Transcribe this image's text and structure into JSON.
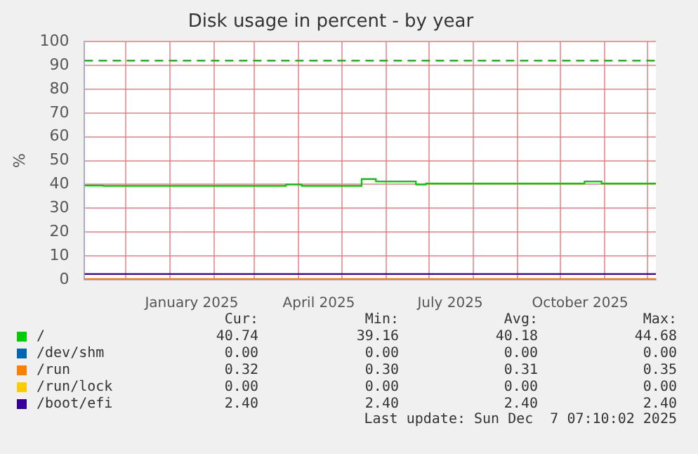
{
  "chart_data": {
    "type": "line",
    "title": "Disk usage in percent - by year",
    "ylabel": "%",
    "xlim": [
      "2024-11-02",
      "2025-12-07"
    ],
    "xticks": [
      {
        "value": "2024-12-01",
        "label": null
      },
      {
        "value": "2025-01-01",
        "label": null
      },
      {
        "value": "2025-01-16",
        "label": "January 2025"
      },
      {
        "value": "2025-02-01",
        "label": null
      },
      {
        "value": "2025-03-01",
        "label": null
      },
      {
        "value": "2025-04-01",
        "label": null
      },
      {
        "value": "2025-04-15",
        "label": "April 2025"
      },
      {
        "value": "2025-05-01",
        "label": null
      },
      {
        "value": "2025-06-01",
        "label": null
      },
      {
        "value": "2025-07-01",
        "label": null
      },
      {
        "value": "2025-07-16",
        "label": "July 2025"
      },
      {
        "value": "2025-08-01",
        "label": null
      },
      {
        "value": "2025-09-01",
        "label": null
      },
      {
        "value": "2025-10-01",
        "label": null
      },
      {
        "value": "2025-10-15",
        "label": "October 2025"
      },
      {
        "value": "2025-11-01",
        "label": null
      },
      {
        "value": "2025-12-01",
        "label": null
      }
    ],
    "ylim": [
      0,
      100
    ],
    "yticks": [
      0,
      10,
      20,
      30,
      40,
      50,
      60,
      70,
      80,
      90,
      100
    ],
    "grid": true,
    "legend": "bottom",
    "marker": "none",
    "line_style": "solid",
    "series": [
      {
        "name": "/",
        "type": "step",
        "color": "#00cc00",
        "x": [
          "2024-11-02",
          "2024-11-15",
          "2025-03-23",
          "2025-04-03",
          "2025-05-15",
          "2025-05-25",
          "2025-06-15",
          "2025-06-22",
          "2025-06-29",
          "2025-10-18",
          "2025-10-30",
          "2025-12-07"
        ],
        "values": [
          39.6,
          39.4,
          40,
          39.4,
          42.3,
          41.3,
          41.3,
          40,
          40.4,
          41.3,
          40.4,
          40.4
        ]
      },
      {
        "name": "/dev/shm",
        "color": "#0066b3"
      },
      {
        "name": "/run",
        "color": "#ff8000",
        "x": [
          "2024-11-02",
          "2025-12-07"
        ],
        "values": [
          0.3,
          0.3
        ]
      },
      {
        "name": "/run/lock",
        "color": "#ffcc00"
      },
      {
        "name": "/boot/efi",
        "color": "#330099",
        "x": [
          "2024-11-02",
          "2025-12-07"
        ],
        "values": [
          2.4,
          2.4
        ]
      }
    ],
    "ref_lines": [
      {
        "axis": "y",
        "value": 92,
        "color": "#00cc00",
        "line_style": "dashed"
      }
    ],
    "annotations": [
      "Cur:",
      "Min:",
      "Avg:",
      "Max:",
      "40.74",
      "39.16",
      "40.18",
      "44.68",
      "0.00",
      "0.00",
      "0.00",
      "0.00",
      "0.32",
      "0.30",
      "0.31",
      "0.35",
      "0.00",
      "0.00",
      "0.00",
      "0.00",
      "2.40",
      "2.40",
      "2.40",
      "2.40",
      "Last update: Sun Dec  7 07:10:02 2025"
    ]
  }
}
